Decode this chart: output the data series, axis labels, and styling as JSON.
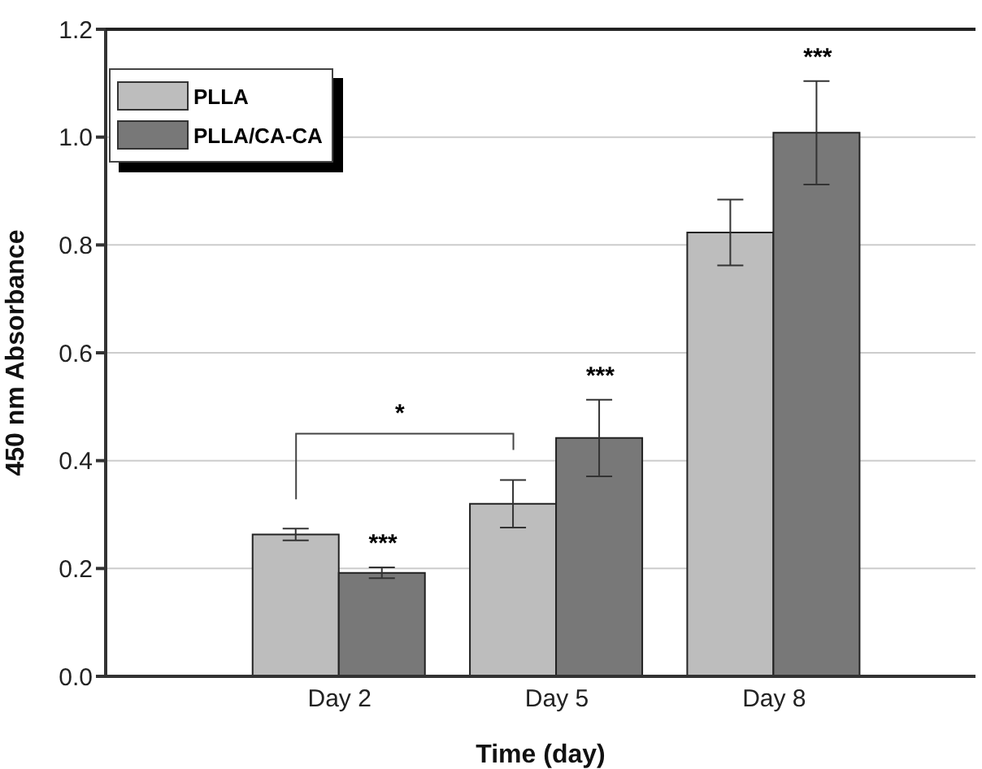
{
  "chart_data": {
    "type": "bar",
    "xlabel": "Time (day)",
    "ylabel": "450 nm Absorbance",
    "categories": [
      "Day 2",
      "Day 5",
      "Day 8"
    ],
    "series": [
      {
        "name": "PLLA",
        "color": "#bdbdbd",
        "values": [
          0.263,
          0.32,
          0.823
        ],
        "errors": [
          0.011,
          0.044,
          0.061
        ]
      },
      {
        "name": "PLLA/CA-CA",
        "color": "#787878",
        "values": [
          0.192,
          0.442,
          1.008
        ],
        "errors": [
          0.01,
          0.071,
          0.096
        ]
      }
    ],
    "ylim": [
      0,
      1.2
    ],
    "yticks": [
      {
        "value": 0,
        "label": "0.0"
      },
      0.2,
      0.4,
      0.6,
      0.8,
      {
        "value": 1,
        "label": "1.0"
      },
      1.2
    ],
    "grid": "y",
    "legend": "top left",
    "annotations": [
      "***",
      "***",
      "***",
      "*"
    ]
  }
}
